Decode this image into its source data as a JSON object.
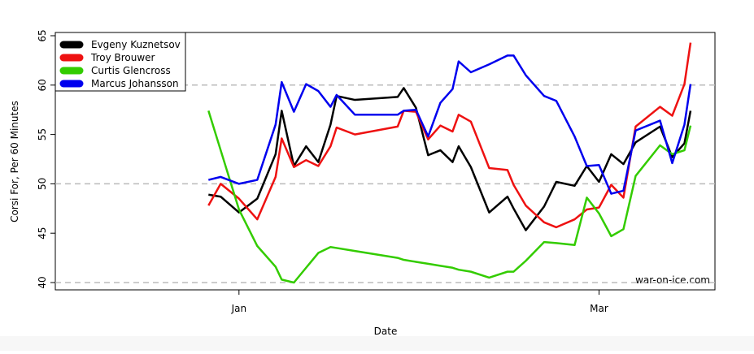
{
  "chart_data": {
    "type": "line",
    "x_label": "Date",
    "y_label": "Corsi For, Per 60 Minutes",
    "annotation": "war-on-ice.com",
    "x": [
      -5,
      -3,
      0,
      3,
      6,
      7,
      9,
      11,
      13,
      15,
      16,
      19,
      26,
      27,
      29,
      31,
      33,
      35,
      36,
      38,
      41,
      44,
      45,
      47,
      50,
      52,
      55,
      57,
      59,
      61,
      63,
      65,
      69,
      71,
      73,
      74
    ],
    "xlim": [
      -30.1,
      78
    ],
    "xticks": [
      {
        "value": 0,
        "label": "Jan"
      },
      {
        "value": 59,
        "label": "Mar"
      }
    ],
    "ylim": [
      39.26,
      65.33
    ],
    "yticks": [
      40,
      45,
      50,
      55,
      60,
      65
    ],
    "grid_lines": [
      40,
      50,
      60
    ],
    "legend": "top-left",
    "series": [
      {
        "name": "Evgeny Kuznetsov",
        "color": "#000000",
        "values": [
          48.9,
          48.7,
          47.1,
          48.5,
          53,
          57.4,
          51.8,
          53.8,
          52.2,
          56,
          58.9,
          58.5,
          58.8,
          59.7,
          57.7,
          52.9,
          53.4,
          52.2,
          53.8,
          51.7,
          47.1,
          48.7,
          47.5,
          45.3,
          47.7,
          50.2,
          49.8,
          51.8,
          50.2,
          53,
          52,
          54.2,
          55.8,
          52.7,
          54.1,
          57.4
        ]
      },
      {
        "name": "Troy Brouwer",
        "color": "#ee1111",
        "values": [
          47.8,
          50,
          48.5,
          46.4,
          50.7,
          54.6,
          51.7,
          52.4,
          51.8,
          53.8,
          55.7,
          55,
          55.8,
          57.4,
          57.3,
          54.5,
          55.9,
          55.3,
          57,
          56.3,
          51.6,
          51.4,
          49.9,
          47.8,
          46.1,
          45.6,
          46.4,
          47.4,
          47.6,
          49.9,
          48.6,
          55.8,
          57.8,
          56.9,
          60.1,
          64.3
        ]
      },
      {
        "name": "Curtis Glencross",
        "color": "#33cc00",
        "values": [
          57.4,
          53.4,
          47.4,
          43.7,
          41.6,
          40.3,
          40,
          41.5,
          43,
          43.6,
          43.5,
          43.2,
          42.5,
          42.3,
          42.1,
          41.9,
          41.7,
          41.5,
          41.3,
          41.1,
          40.5,
          41.1,
          41.1,
          42.2,
          44.1,
          44,
          43.8,
          48.6,
          47,
          44.7,
          45.4,
          50.8,
          53.9,
          53,
          53.4,
          55.9
        ]
      },
      {
        "name": "Marcus Johansson",
        "color": "#0000ee",
        "values": [
          50.4,
          50.7,
          50,
          50.4,
          56,
          60.3,
          57.3,
          60.1,
          59.4,
          57.8,
          59,
          57,
          57,
          57.4,
          57.5,
          54.8,
          58.2,
          59.6,
          62.4,
          61.3,
          62.1,
          63,
          63,
          61,
          58.9,
          58.4,
          54.8,
          51.8,
          51.9,
          49,
          49.3,
          55.4,
          56.4,
          52.1,
          56,
          60.1
        ]
      }
    ]
  }
}
